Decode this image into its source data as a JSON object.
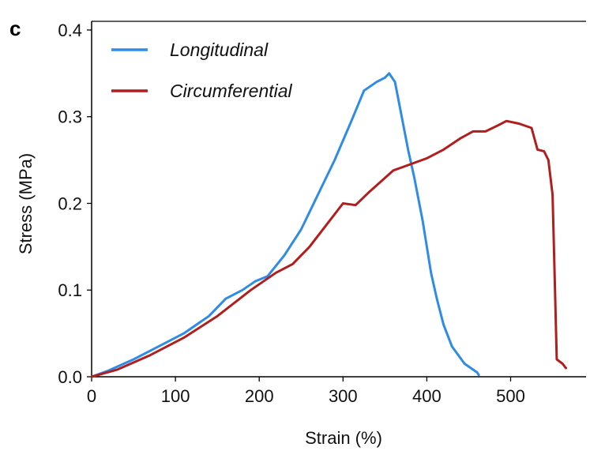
{
  "panel_label": "c",
  "chart_data": {
    "type": "line",
    "xlabel": "Strain (%)",
    "ylabel": "Stress (MPa)",
    "xlim": [
      0,
      590
    ],
    "ylim": [
      0,
      0.41
    ],
    "x_ticks": [
      0,
      100,
      200,
      300,
      400,
      500
    ],
    "x_tick_labels": [
      "0",
      "100",
      "200",
      "300",
      "400",
      "500"
    ],
    "y_ticks": [
      0.0,
      0.1,
      0.2,
      0.3,
      0.4
    ],
    "y_tick_labels": [
      "0.0",
      "0.1",
      "0.2",
      "0.3",
      "0.4"
    ],
    "grid": false,
    "legend_position": "top-left",
    "series": [
      {
        "name": "Longitudinal",
        "color": "#2e8be6",
        "points": [
          [
            0,
            0.0
          ],
          [
            20,
            0.007
          ],
          [
            50,
            0.02
          ],
          [
            80,
            0.035
          ],
          [
            110,
            0.05
          ],
          [
            140,
            0.07
          ],
          [
            160,
            0.09
          ],
          [
            170,
            0.095
          ],
          [
            180,
            0.1
          ],
          [
            195,
            0.11
          ],
          [
            210,
            0.116
          ],
          [
            230,
            0.14
          ],
          [
            250,
            0.17
          ],
          [
            270,
            0.21
          ],
          [
            290,
            0.25
          ],
          [
            310,
            0.295
          ],
          [
            325,
            0.33
          ],
          [
            340,
            0.34
          ],
          [
            350,
            0.345
          ],
          [
            355,
            0.35
          ],
          [
            362,
            0.34
          ],
          [
            370,
            0.3
          ],
          [
            378,
            0.26
          ],
          [
            385,
            0.23
          ],
          [
            395,
            0.18
          ],
          [
            405,
            0.12
          ],
          [
            412,
            0.09
          ],
          [
            420,
            0.06
          ],
          [
            430,
            0.035
          ],
          [
            445,
            0.015
          ],
          [
            460,
            0.005
          ],
          [
            462,
            0.002
          ]
        ]
      },
      {
        "name": "Circumferential",
        "color": "#b01e1e",
        "points": [
          [
            0,
            0.0
          ],
          [
            30,
            0.008
          ],
          [
            70,
            0.025
          ],
          [
            110,
            0.045
          ],
          [
            150,
            0.07
          ],
          [
            190,
            0.1
          ],
          [
            220,
            0.12
          ],
          [
            240,
            0.13
          ],
          [
            260,
            0.15
          ],
          [
            280,
            0.175
          ],
          [
            300,
            0.2
          ],
          [
            315,
            0.198
          ],
          [
            330,
            0.212
          ],
          [
            345,
            0.225
          ],
          [
            360,
            0.238
          ],
          [
            380,
            0.245
          ],
          [
            400,
            0.252
          ],
          [
            420,
            0.262
          ],
          [
            440,
            0.275
          ],
          [
            455,
            0.283
          ],
          [
            470,
            0.283
          ],
          [
            485,
            0.29
          ],
          [
            495,
            0.295
          ],
          [
            510,
            0.292
          ],
          [
            525,
            0.287
          ],
          [
            532,
            0.262
          ],
          [
            540,
            0.26
          ],
          [
            545,
            0.25
          ],
          [
            550,
            0.21
          ],
          [
            553,
            0.1
          ],
          [
            555,
            0.02
          ],
          [
            562,
            0.015
          ],
          [
            566,
            0.01
          ]
        ]
      }
    ]
  }
}
